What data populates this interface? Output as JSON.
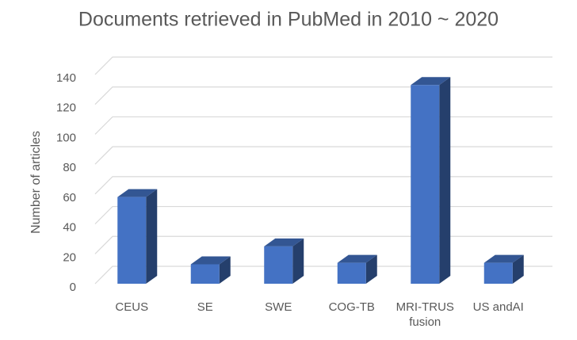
{
  "chart_data": {
    "type": "bar3d",
    "title": "Documents retrieved in PubMed in 2010 ~ 2020",
    "y_label": "Number of articles",
    "categories": [
      "CEUS",
      "SE",
      "SWE",
      "COG-TB",
      "MRI-TRUS fusion",
      "US andAI"
    ],
    "values": [
      58,
      13,
      25,
      14,
      133,
      14
    ],
    "color": "#4472c4",
    "ylim": [
      0,
      140
    ],
    "yticks": [
      0,
      20,
      40,
      60,
      80,
      100,
      120,
      140
    ],
    "grid": true
  }
}
